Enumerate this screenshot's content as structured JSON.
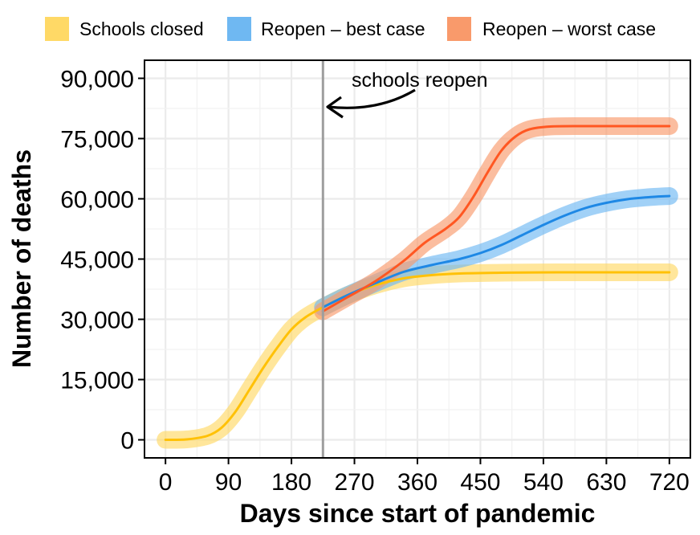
{
  "chart_data": {
    "type": "line",
    "xlabel": "Days since start of pandemic",
    "ylabel": "Number of deaths",
    "xlim": [
      -30,
      750
    ],
    "ylim": [
      -4500,
      94500
    ],
    "x_ticks": [
      0,
      90,
      180,
      270,
      360,
      450,
      540,
      630,
      720
    ],
    "x_tick_labels": [
      "0",
      "90",
      "180",
      "270",
      "360",
      "450",
      "540",
      "630",
      "720"
    ],
    "y_ticks": [
      0,
      15000,
      30000,
      45000,
      60000,
      75000,
      90000
    ],
    "y_tick_labels": [
      "0",
      "15,000",
      "30,000",
      "45,000",
      "60,000",
      "75,000",
      "90,000"
    ],
    "grid": true,
    "legend_position": "top",
    "legend": [
      {
        "label": "Schools closed",
        "color": "#FFD966"
      },
      {
        "label": "Reopen – best case",
        "color": "#6FB8F2"
      },
      {
        "label": "Reopen – worst case",
        "color": "#F99A6B"
      }
    ],
    "annotation": {
      "text": "schools reopen",
      "x": 225
    },
    "series": [
      {
        "name": "Schools closed",
        "band_color": "#FFD966",
        "line_color": "#FFC107",
        "x": [
          0,
          30,
          60,
          80,
          100,
          120,
          140,
          160,
          180,
          200,
          225,
          260,
          300,
          340,
          380,
          420,
          480,
          560,
          640,
          720
        ],
        "values": [
          0,
          100,
          1000,
          3000,
          7000,
          12500,
          18000,
          23000,
          27500,
          30500,
          33000,
          36000,
          38500,
          40200,
          41000,
          41400,
          41600,
          41700,
          41700,
          41700
        ]
      },
      {
        "name": "Reopen – best case",
        "band_color": "#6FB8F2",
        "line_color": "#1E88E5",
        "x": [
          225,
          260,
          300,
          340,
          380,
          420,
          450,
          480,
          510,
          540,
          570,
          600,
          630,
          660,
          690,
          720
        ],
        "values": [
          33000,
          36000,
          39000,
          41800,
          43500,
          45000,
          46500,
          48500,
          51000,
          53500,
          55800,
          57700,
          59000,
          59900,
          60400,
          60700
        ]
      },
      {
        "name": "Reopen – worst case",
        "band_color": "#F99A6B",
        "line_color": "#FF5722",
        "x": [
          225,
          260,
          300,
          340,
          370,
          400,
          420,
          440,
          460,
          480,
          500,
          520,
          550,
          600,
          650,
          720
        ],
        "values": [
          32000,
          35500,
          39500,
          44500,
          49000,
          52500,
          55500,
          60500,
          66500,
          72000,
          75500,
          77300,
          78000,
          78100,
          78100,
          78100
        ]
      }
    ]
  }
}
